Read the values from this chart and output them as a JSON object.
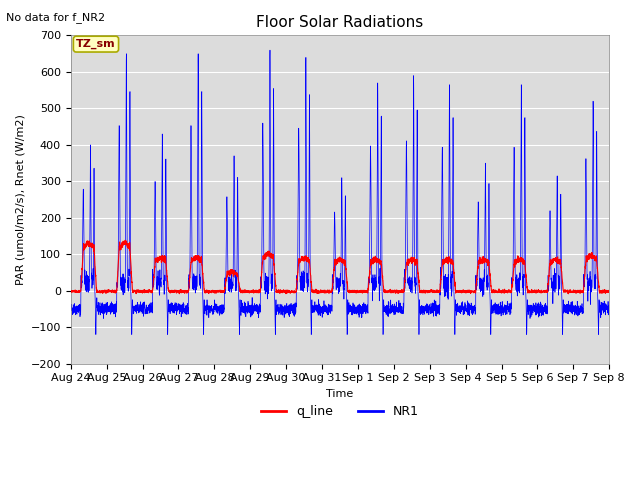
{
  "title": "Floor Solar Radiations",
  "xlabel": "Time",
  "ylabel": "PAR (umol/m2/s), Rnet (W/m2)",
  "ylim": [
    -200,
    700
  ],
  "yticks": [
    -200,
    -100,
    0,
    100,
    200,
    300,
    400,
    500,
    600,
    700
  ],
  "num_days": 15,
  "x_tick_labels": [
    "Aug 24",
    "Aug 25",
    "Aug 26",
    "Aug 27",
    "Aug 28",
    "Aug 29",
    "Aug 30",
    "Aug 31",
    "Sep 1",
    "Sep 2",
    "Sep 3",
    "Sep 4",
    "Sep 5",
    "Sep 6",
    "Sep 7",
    "Sep 8"
  ],
  "note_text": "No data for f_NR2",
  "legend_box_label": "TZ_sm",
  "q_line_color": "#FF0000",
  "NR1_color": "#0000FF",
  "background_color": "#DCDCDC",
  "legend_entries": [
    "q_line",
    "NR1"
  ],
  "legend_colors": [
    "#FF0000",
    "#0000FF"
  ],
  "NR1_peaks": [
    400,
    650,
    430,
    650,
    370,
    660,
    640,
    310,
    570,
    590,
    565,
    350,
    565,
    315,
    520,
    520
  ],
  "q_peaks": [
    130,
    130,
    90,
    90,
    50,
    100,
    90,
    85,
    85,
    85,
    85,
    85,
    85,
    85,
    95,
    95
  ],
  "title_fontsize": 11,
  "label_fontsize": 8,
  "tick_fontsize": 8
}
